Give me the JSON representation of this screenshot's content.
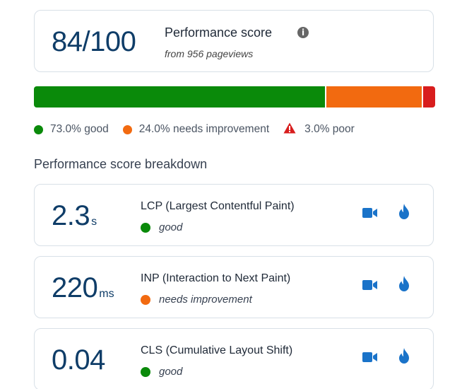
{
  "summary": {
    "score": "84/100",
    "title": "Performance score",
    "subtitle": "from 956 pageviews"
  },
  "distribution": {
    "segments": [
      {
        "key": "good",
        "percent": 73.0,
        "color": "#0a8a0a"
      },
      {
        "key": "needs_improvement",
        "percent": 24.0,
        "color": "#f26a10"
      },
      {
        "key": "poor",
        "percent": 3.0,
        "color": "#d81d1d"
      }
    ]
  },
  "legend": {
    "good": "73.0% good",
    "needs_improvement": "24.0% needs improvement",
    "poor": "3.0% poor"
  },
  "breakdown": {
    "title": "Performance score breakdown",
    "metrics": [
      {
        "value": "2.3",
        "unit": "s",
        "name": "LCP (Largest Contentful Paint)",
        "status": "good",
        "status_color": "#0a8a0a",
        "icons": [
          "video-camera-icon",
          "flame-icon"
        ]
      },
      {
        "value": "220",
        "unit": "ms",
        "name": "INP (Interaction to Next Paint)",
        "status": "needs improvement",
        "status_color": "#f26a10",
        "icons": [
          "video-camera-icon",
          "flame-icon"
        ]
      },
      {
        "value": "0.04",
        "unit": "",
        "name": "CLS (Cumulative Layout Shift)",
        "status": "good",
        "status_color": "#0a8a0a",
        "icons": [
          "video-camera-icon",
          "flame-icon"
        ]
      }
    ]
  },
  "colors": {
    "accent_text": "#0f3d68",
    "icon_blue": "#1a73c9",
    "good": "#0a8a0a",
    "needs_improvement": "#f26a10",
    "poor": "#d81d1d"
  }
}
